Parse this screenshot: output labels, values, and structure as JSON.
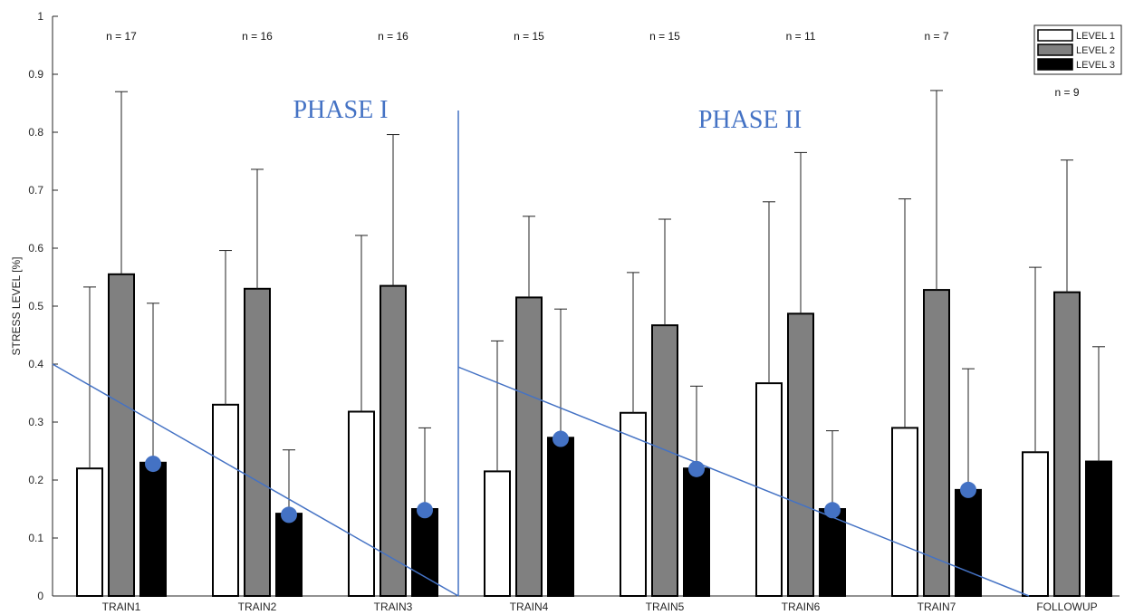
{
  "chart_data": {
    "type": "bar",
    "ylabel": "STRESS LEVEL [%]",
    "xlabel": "",
    "ylim": [
      0,
      1
    ],
    "yticks": [
      0,
      0.1,
      0.2,
      0.3,
      0.4,
      0.5,
      0.6,
      0.7,
      0.8,
      0.9,
      1
    ],
    "ytick_labels": [
      "0",
      "0.1",
      "0.2",
      "0.3",
      "0.4",
      "0.5",
      "0.6",
      "0.7",
      "0.8",
      "0.9",
      "1"
    ],
    "categories": [
      "TRAIN1",
      "TRAIN2",
      "TRAIN3",
      "TRAIN4",
      "TRAIN5",
      "TRAIN6",
      "TRAIN7",
      "FOLLOWUP"
    ],
    "series": [
      {
        "name": "LEVEL 1",
        "color": "#ffffff",
        "values": [
          0.22,
          0.33,
          0.318,
          0.215,
          0.316,
          0.367,
          0.29,
          0.248
        ],
        "error_upper": [
          0.533,
          0.596,
          0.622,
          0.44,
          0.558,
          0.68,
          0.685,
          0.567
        ]
      },
      {
        "name": "LEVEL 2",
        "color": "#808080",
        "values": [
          0.555,
          0.53,
          0.535,
          0.515,
          0.467,
          0.487,
          0.528,
          0.524
        ],
        "error_upper": [
          0.87,
          0.736,
          0.796,
          0.655,
          0.65,
          0.765,
          0.872,
          0.752
        ]
      },
      {
        "name": "LEVEL 3",
        "color": "#000000",
        "values": [
          0.23,
          0.142,
          0.15,
          0.273,
          0.22,
          0.15,
          0.183,
          0.232
        ],
        "error_upper": [
          0.505,
          0.252,
          0.29,
          0.495,
          0.362,
          0.285,
          0.392,
          0.43
        ]
      }
    ],
    "sample_sizes": [
      "n = 17",
      "n = 16",
      "n = 16",
      "n = 15",
      "n = 15",
      "n = 11",
      "n = 7",
      "n = 9"
    ],
    "markers": {
      "color": "#4472c4",
      "points": [
        {
          "category": "TRAIN1",
          "y": 0.228
        },
        {
          "category": "TRAIN2",
          "y": 0.14
        },
        {
          "category": "TRAIN3",
          "y": 0.148
        },
        {
          "category": "TRAIN4",
          "y": 0.271
        },
        {
          "category": "TRAIN5",
          "y": 0.219
        },
        {
          "category": "TRAIN6",
          "y": 0.148
        },
        {
          "category": "TRAIN7",
          "y": 0.183
        }
      ]
    },
    "phases": [
      {
        "label": "PHASE I",
        "color": "#4472c4"
      },
      {
        "label": "PHASE II",
        "color": "#4472c4"
      }
    ],
    "trend_color": "#4472c4",
    "legend_position": "top-right",
    "grid": false
  }
}
